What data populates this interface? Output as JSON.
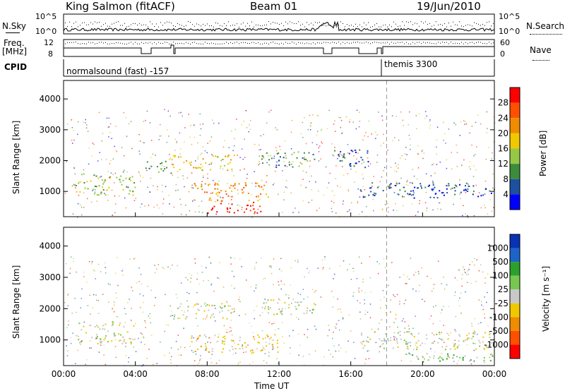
{
  "header": {
    "station": "King Salmon (fitACF)",
    "beam": "Beam 01",
    "date": "19/Jun/2010"
  },
  "strip_labels": {
    "left_nsky": "N.Sky",
    "left_freq_1": "Freq.",
    "left_freq_2": "[MHz]",
    "left_cpid": "CPID",
    "right_nsearch": "N.Search",
    "right_nave": "Nave",
    "noise_ticks_left": [
      "10^5",
      "10^0"
    ],
    "noise_ticks_right": [
      "10^5",
      "10^0"
    ],
    "freq_ticks": [
      "12",
      "8"
    ],
    "nave_ticks": [
      "60",
      "0"
    ]
  },
  "cpid": {
    "mode1": "normalsound (fast) -157",
    "mode2": "themis 3300"
  },
  "chart_data": [
    {
      "type": "heatmap",
      "name": "power-panel",
      "ylabel": "Slant Range [km]",
      "yticks": [
        "1000",
        "2000",
        "3000",
        "4000"
      ],
      "xticks": [
        "00:00",
        "04:00",
        "08:00",
        "12:00",
        "16:00",
        "20:00",
        "00:00"
      ],
      "colorbar_label": "Power [dB]",
      "colorbar_ticks": [
        "4",
        "8",
        "12",
        "16",
        "20",
        "24",
        "28"
      ],
      "colors": [
        "#0000ff",
        "#1e50a0",
        "#3c8c3c",
        "#96c846",
        "#f0c800",
        "#f08c00",
        "#ff5000",
        "#ff0000"
      ],
      "regions": [
        {
          "t0": 0.5,
          "t1": 4.0,
          "r0": 900,
          "r1": 1600,
          "level": 3
        },
        {
          "t0": 4.5,
          "t1": 6.0,
          "r0": 1600,
          "r1": 2000,
          "level": 2
        },
        {
          "t0": 6.0,
          "t1": 9.5,
          "r0": 1700,
          "r1": 2200,
          "level": 4
        },
        {
          "t0": 7.0,
          "t1": 11.5,
          "r0": 700,
          "r1": 1300,
          "level": 5
        },
        {
          "t0": 8.0,
          "t1": 11.0,
          "r0": 300,
          "r1": 700,
          "level": 7
        },
        {
          "t0": 11.0,
          "t1": 14.0,
          "r0": 1800,
          "r1": 2300,
          "level": 2
        },
        {
          "t0": 15.0,
          "t1": 17.0,
          "r0": 1800,
          "r1": 2400,
          "level": 1
        },
        {
          "t0": 16.5,
          "t1": 24.0,
          "r0": 800,
          "r1": 1300,
          "level": 1
        }
      ]
    },
    {
      "type": "heatmap",
      "name": "velocity-panel",
      "ylabel": "Slant Range [km]",
      "yticks": [
        "1000",
        "2000",
        "3000",
        "4000"
      ],
      "xticks": [
        "00:00",
        "04:00",
        "08:00",
        "12:00",
        "16:00",
        "20:00",
        "00:00"
      ],
      "xlabel": "Time UT",
      "colorbar_label": "Velocity [m s⁻¹]",
      "colorbar_ticks": [
        "1000",
        "500",
        "100",
        "25",
        "-25",
        "-100",
        "-500",
        "-1000"
      ],
      "colors": [
        "#0a32b4",
        "#1e64c8",
        "#2ca02c",
        "#78c850",
        "#c8c8c8",
        "#f0c800",
        "#f08c00",
        "#ff5000",
        "#ff0000"
      ],
      "regions": [
        {
          "t0": 0.5,
          "t1": 4.0,
          "r0": 900,
          "r1": 1600,
          "level": 4
        },
        {
          "t0": 6.0,
          "t1": 9.5,
          "r0": 1700,
          "r1": 2200,
          "level": 4
        },
        {
          "t0": 7.0,
          "t1": 12.0,
          "r0": 600,
          "r1": 1200,
          "level": 5
        },
        {
          "t0": 11.0,
          "t1": 14.0,
          "r0": 1800,
          "r1": 2300,
          "level": 4
        },
        {
          "t0": 16.5,
          "t1": 24.0,
          "r0": 700,
          "r1": 1300,
          "level": 4
        },
        {
          "t0": 19.0,
          "t1": 24.0,
          "r0": 300,
          "r1": 600,
          "level": 3
        }
      ]
    }
  ]
}
